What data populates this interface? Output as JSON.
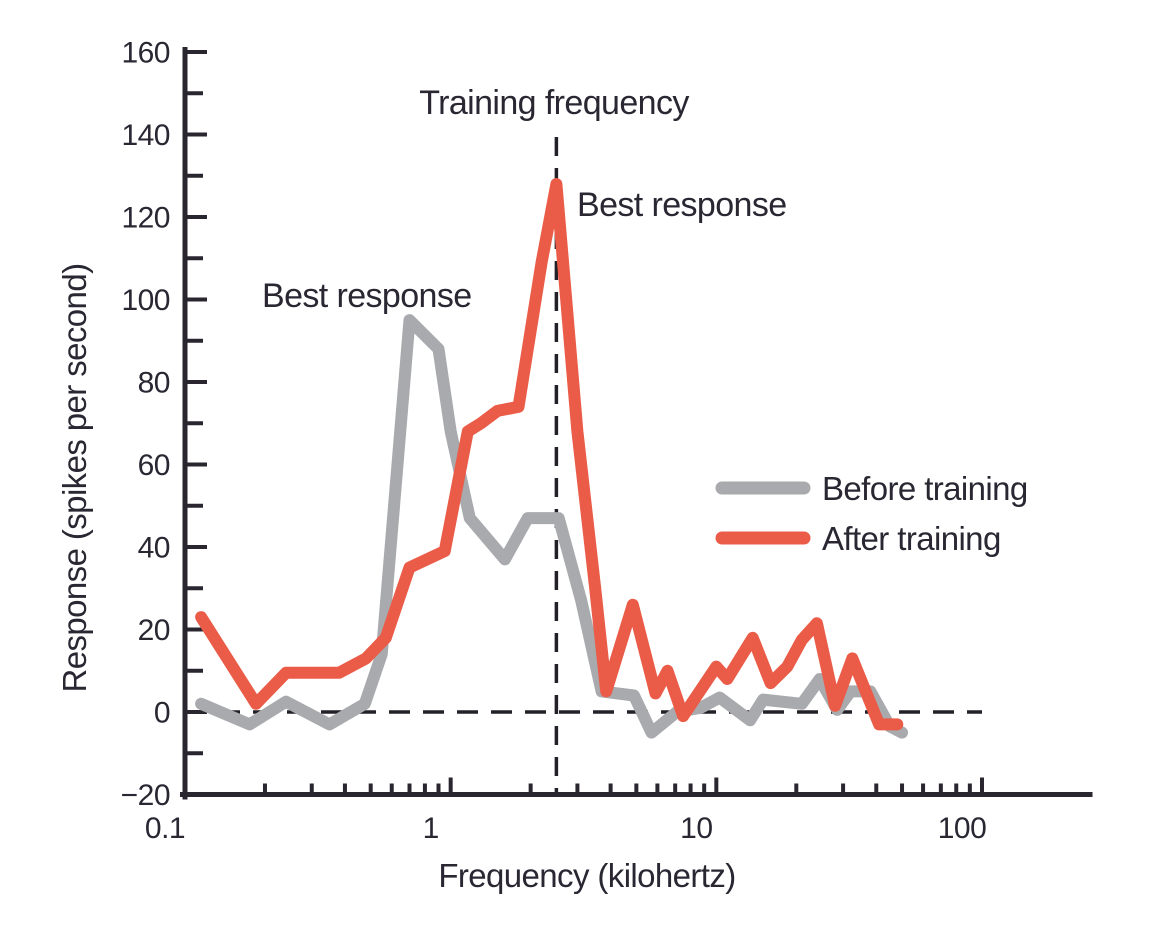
{
  "figure": {
    "background_color": "#ffffff",
    "ink_color": "#29262f"
  },
  "chart_data": {
    "type": "line",
    "title": "",
    "xlabel": "Frequency (kilohertz)",
    "ylabel": "Response (spikes per second)",
    "x_scale": "log",
    "xlim": [
      0.1,
      100
    ],
    "ylim": [
      -20,
      160
    ],
    "grid": false,
    "legend_position": "right-middle",
    "training_frequency_khz": 2.5,
    "baseline_value": 0,
    "x_ticks": [
      {
        "v": 0.1,
        "label": "0.1"
      },
      {
        "v": 1,
        "label": "1"
      },
      {
        "v": 10,
        "label": "10"
      },
      {
        "v": 100,
        "label": "100"
      }
    ],
    "x_minor_ticks": [
      0.2,
      0.3,
      0.4,
      0.5,
      0.6,
      0.7,
      0.8,
      0.9,
      2,
      3,
      4,
      5,
      6,
      7,
      8,
      9,
      20,
      30,
      40,
      50,
      60,
      70,
      80,
      90
    ],
    "y_ticks": [
      {
        "v": 160,
        "label": "160"
      },
      {
        "v": 140,
        "label": "140"
      },
      {
        "v": 120,
        "label": "120"
      },
      {
        "v": 100,
        "label": "100"
      },
      {
        "v": 80,
        "label": "80"
      },
      {
        "v": 60,
        "label": "60"
      },
      {
        "v": 40,
        "label": "40"
      },
      {
        "v": 20,
        "label": "20"
      },
      {
        "v": 0,
        "label": "0"
      },
      {
        "v": -20,
        "label": "−20"
      }
    ],
    "y_minor_ticks": [
      -10,
      10,
      30,
      50,
      70,
      90,
      110,
      130,
      150
    ],
    "series": [
      {
        "name": "Before training",
        "color": "#a8aaad",
        "best_response": {
          "frequency_khz": 0.7,
          "value": 95
        },
        "points": [
          [
            0.115,
            2
          ],
          [
            0.175,
            -3
          ],
          [
            0.24,
            2.5
          ],
          [
            0.35,
            -3
          ],
          [
            0.475,
            2
          ],
          [
            0.55,
            14
          ],
          [
            0.7,
            95
          ],
          [
            0.9,
            88
          ],
          [
            1.0,
            68
          ],
          [
            1.18,
            47
          ],
          [
            1.6,
            37
          ],
          [
            1.95,
            47
          ],
          [
            2.55,
            47
          ],
          [
            3.1,
            27
          ],
          [
            3.7,
            5
          ],
          [
            4.9,
            4
          ],
          [
            5.7,
            -5
          ],
          [
            7.1,
            0
          ],
          [
            8.7,
            1
          ],
          [
            10.3,
            3.5
          ],
          [
            13.4,
            -2
          ],
          [
            15,
            3
          ],
          [
            21,
            2
          ],
          [
            24.5,
            8
          ],
          [
            28.5,
            0.5
          ],
          [
            32,
            5
          ],
          [
            38,
            5
          ],
          [
            45,
            -3.5
          ],
          [
            50,
            -5
          ]
        ]
      },
      {
        "name": "After training",
        "color": "#ea5c48",
        "best_response": {
          "frequency_khz": 2.5,
          "value": 128
        },
        "points": [
          [
            0.115,
            23
          ],
          [
            0.185,
            2
          ],
          [
            0.24,
            9.5
          ],
          [
            0.38,
            9.5
          ],
          [
            0.48,
            13
          ],
          [
            0.57,
            18
          ],
          [
            0.7,
            35
          ],
          [
            0.95,
            39
          ],
          [
            1.16,
            68
          ],
          [
            1.3,
            70
          ],
          [
            1.5,
            73
          ],
          [
            1.8,
            74
          ],
          [
            2.2,
            109
          ],
          [
            2.5,
            128
          ],
          [
            3.0,
            68
          ],
          [
            3.5,
            30
          ],
          [
            3.85,
            5
          ],
          [
            4.85,
            26
          ],
          [
            5.9,
            4.5
          ],
          [
            6.55,
            10
          ],
          [
            7.5,
            -1
          ],
          [
            10,
            11
          ],
          [
            11,
            8
          ],
          [
            13.7,
            18
          ],
          [
            16,
            7
          ],
          [
            18.5,
            11
          ],
          [
            21,
            17.5
          ],
          [
            23.9,
            21.5
          ],
          [
            28,
            1.5
          ],
          [
            32.5,
            13
          ],
          [
            41,
            -3
          ],
          [
            48,
            -3
          ]
        ]
      }
    ],
    "annotations": [
      {
        "id": "training-frequency",
        "text": "Training frequency"
      },
      {
        "id": "best-response-before",
        "text": "Best response"
      },
      {
        "id": "best-response-after",
        "text": "Best response"
      }
    ]
  }
}
